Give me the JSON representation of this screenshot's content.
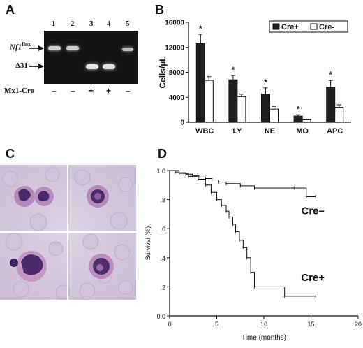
{
  "panels": {
    "a": "A",
    "b": "B",
    "c": "C",
    "d": "D"
  },
  "gel": {
    "lane_numbers": [
      "1",
      "2",
      "3",
      "4",
      "5"
    ],
    "band_nf1_label": "Nf1",
    "band_nf1_sup": "flox",
    "band_d31_label": "Δ31",
    "mx1cre_label": "Mx1-Cre",
    "genotypes": [
      "–",
      "–",
      "+",
      "+",
      "–"
    ],
    "nf1_bands": [
      1,
      1,
      0,
      0,
      1
    ],
    "d31_bands": [
      0,
      0,
      1,
      1,
      0
    ]
  },
  "micrograph": {
    "caption": ""
  },
  "chart_data": [
    {
      "type": "bar",
      "title": "",
      "xlabel": "",
      "ylabel": "Cells/µL",
      "ylim": [
        0,
        16000
      ],
      "yticks": [
        "0",
        "4000",
        "8000",
        "12000",
        "16000"
      ],
      "categories": [
        "WBC",
        "LY",
        "NE",
        "MO",
        "APC"
      ],
      "series": [
        {
          "name": "Cre+",
          "color": "#1f1f1f",
          "values": [
            12600,
            6800,
            4500,
            1000,
            5600
          ],
          "errors": [
            1500,
            700,
            1000,
            200,
            1100
          ]
        },
        {
          "name": "Cre-",
          "color": "#ffffff",
          "values": [
            6700,
            4100,
            2100,
            400,
            2400
          ],
          "errors": [
            600,
            400,
            450,
            100,
            400
          ]
        }
      ],
      "significance": [
        "*",
        "*",
        "*",
        "*",
        "*"
      ],
      "legend_position": "top-right",
      "grid": false
    },
    {
      "type": "line",
      "title": "",
      "xlabel": "Time (months)",
      "ylabel": "Survival (%)",
      "xlim": [
        0,
        20
      ],
      "ylim": [
        0,
        1
      ],
      "xticks": [
        "0",
        "5",
        "10",
        "15",
        "20"
      ],
      "yticks": [
        "0.0",
        ".2",
        ".4",
        ".6",
        ".8",
        "1.0"
      ],
      "series": [
        {
          "name": "Cre–",
          "x": [
            0,
            0.6,
            1.0,
            1.7,
            2.4,
            3.1,
            3.8,
            4.5,
            5.2,
            6.0,
            7.5,
            9.0,
            13.2,
            14.5,
            15.5
          ],
          "y": [
            1.0,
            0.99,
            0.985,
            0.975,
            0.965,
            0.955,
            0.945,
            0.935,
            0.92,
            0.91,
            0.895,
            0.88,
            0.88,
            0.82,
            0.82
          ]
        },
        {
          "name": "Cre+",
          "x": [
            0,
            1.0,
            2.0,
            3.0,
            3.8,
            4.4,
            5.0,
            5.5,
            6.0,
            6.3,
            6.7,
            7.0,
            7.4,
            7.8,
            8.2,
            8.6,
            9.0,
            12.2,
            15.5
          ],
          "y": [
            1.0,
            0.98,
            0.96,
            0.94,
            0.9,
            0.85,
            0.8,
            0.76,
            0.72,
            0.68,
            0.63,
            0.58,
            0.52,
            0.47,
            0.4,
            0.3,
            0.2,
            0.135,
            0.135
          ]
        }
      ],
      "curve_labels": [
        "Cre–",
        "Cre+"
      ]
    }
  ]
}
